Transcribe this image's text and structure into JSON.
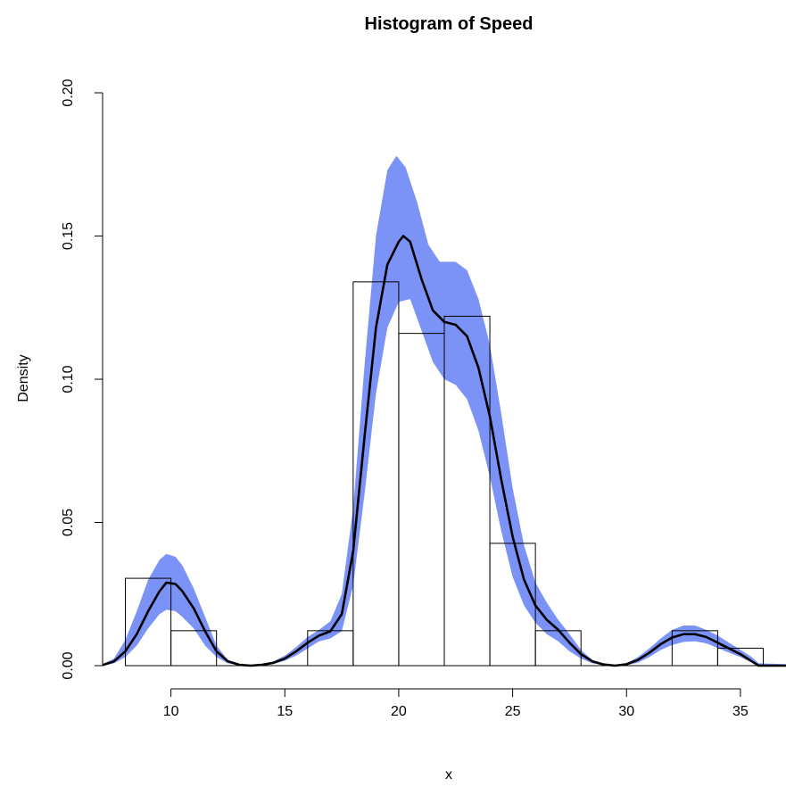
{
  "chart_data": {
    "type": "bar",
    "title": "Histogram of Speed",
    "xlabel": "x",
    "ylabel": "Density",
    "xlim": [
      7.0,
      37.0
    ],
    "ylim": [
      0.0,
      0.2
    ],
    "x_ticks": [
      10,
      15,
      20,
      25,
      30,
      35
    ],
    "x_tick_labels": [
      "10",
      "15",
      "20",
      "25",
      "30",
      "35"
    ],
    "y_ticks": [
      0.0,
      0.05,
      0.1,
      0.15,
      0.2
    ],
    "y_tick_labels": [
      "0.00",
      "0.05",
      "0.10",
      "0.15",
      "0.20"
    ],
    "grid": false,
    "bins": [
      {
        "x0": 8,
        "x1": 10,
        "density": 0.0305
      },
      {
        "x0": 10,
        "x1": 12,
        "density": 0.0122
      },
      {
        "x0": 12,
        "x1": 14,
        "density": 0.0
      },
      {
        "x0": 14,
        "x1": 16,
        "density": 0.0
      },
      {
        "x0": 16,
        "x1": 18,
        "density": 0.0122
      },
      {
        "x0": 18,
        "x1": 20,
        "density": 0.134
      },
      {
        "x0": 20,
        "x1": 22,
        "density": 0.116
      },
      {
        "x0": 22,
        "x1": 24,
        "density": 0.122
      },
      {
        "x0": 24,
        "x1": 26,
        "density": 0.0427
      },
      {
        "x0": 26,
        "x1": 28,
        "density": 0.0122
      },
      {
        "x0": 28,
        "x1": 30,
        "density": 0.0
      },
      {
        "x0": 30,
        "x1": 32,
        "density": 0.0
      },
      {
        "x0": 32,
        "x1": 34,
        "density": 0.0122
      },
      {
        "x0": 34,
        "x1": 36,
        "density": 0.0061
      }
    ],
    "density_curve": {
      "color": "#000000",
      "points": [
        [
          7,
          0.0002
        ],
        [
          7.5,
          0.0015
        ],
        [
          8,
          0.005
        ],
        [
          8.5,
          0.011
        ],
        [
          9,
          0.019
        ],
        [
          9.5,
          0.026
        ],
        [
          9.8,
          0.029
        ],
        [
          10.2,
          0.0285
        ],
        [
          10.5,
          0.026
        ],
        [
          11,
          0.02
        ],
        [
          11.5,
          0.012
        ],
        [
          12,
          0.005
        ],
        [
          12.5,
          0.0015
        ],
        [
          13,
          0.0003
        ],
        [
          13.5,
          0.0
        ],
        [
          14,
          0.0003
        ],
        [
          14.5,
          0.001
        ],
        [
          15,
          0.0025
        ],
        [
          15.5,
          0.005
        ],
        [
          16,
          0.008
        ],
        [
          16.5,
          0.0105
        ],
        [
          17,
          0.012
        ],
        [
          17.5,
          0.018
        ],
        [
          18,
          0.04
        ],
        [
          18.5,
          0.08
        ],
        [
          19,
          0.118
        ],
        [
          19.5,
          0.14
        ],
        [
          20,
          0.148
        ],
        [
          20.2,
          0.15
        ],
        [
          20.5,
          0.148
        ],
        [
          21,
          0.135
        ],
        [
          21.5,
          0.124
        ],
        [
          22,
          0.12
        ],
        [
          22.5,
          0.119
        ],
        [
          23,
          0.115
        ],
        [
          23.5,
          0.104
        ],
        [
          24,
          0.087
        ],
        [
          24.5,
          0.065
        ],
        [
          25,
          0.045
        ],
        [
          25.5,
          0.03
        ],
        [
          26,
          0.021
        ],
        [
          26.5,
          0.016
        ],
        [
          27,
          0.0125
        ],
        [
          27.5,
          0.008
        ],
        [
          28,
          0.004
        ],
        [
          28.5,
          0.0015
        ],
        [
          29,
          0.0004
        ],
        [
          29.5,
          0.0
        ],
        [
          30,
          0.0005
        ],
        [
          30.5,
          0.002
        ],
        [
          31,
          0.0045
        ],
        [
          31.5,
          0.0075
        ],
        [
          32,
          0.0098
        ],
        [
          32.5,
          0.011
        ],
        [
          33,
          0.011
        ],
        [
          33.5,
          0.01
        ],
        [
          34,
          0.008
        ],
        [
          34.5,
          0.006
        ],
        [
          35,
          0.004
        ],
        [
          35.5,
          0.0015
        ],
        [
          35.8,
          0.0
        ],
        [
          37,
          0.0
        ]
      ]
    },
    "confidence_band": {
      "color": "#7b93f7",
      "upper": [
        [
          7,
          0.0005
        ],
        [
          7.5,
          0.0025
        ],
        [
          8,
          0.009
        ],
        [
          8.5,
          0.019
        ],
        [
          9,
          0.03
        ],
        [
          9.5,
          0.037
        ],
        [
          9.8,
          0.039
        ],
        [
          10.2,
          0.038
        ],
        [
          10.5,
          0.035
        ],
        [
          11,
          0.027
        ],
        [
          11.5,
          0.017
        ],
        [
          12,
          0.007
        ],
        [
          12.5,
          0.002
        ],
        [
          13,
          0.0004
        ],
        [
          13.5,
          0.0
        ],
        [
          14,
          0.0004
        ],
        [
          14.5,
          0.0015
        ],
        [
          15,
          0.0035
        ],
        [
          15.5,
          0.0065
        ],
        [
          16,
          0.01
        ],
        [
          16.5,
          0.0125
        ],
        [
          17,
          0.0155
        ],
        [
          17.5,
          0.025
        ],
        [
          18,
          0.055
        ],
        [
          18.5,
          0.105
        ],
        [
          19,
          0.15
        ],
        [
          19.5,
          0.173
        ],
        [
          19.9,
          0.178
        ],
        [
          20.3,
          0.174
        ],
        [
          20.8,
          0.162
        ],
        [
          21.3,
          0.147
        ],
        [
          21.8,
          0.141
        ],
        [
          22.5,
          0.141
        ],
        [
          23,
          0.138
        ],
        [
          23.5,
          0.128
        ],
        [
          24,
          0.112
        ],
        [
          24.5,
          0.088
        ],
        [
          25,
          0.062
        ],
        [
          25.5,
          0.042
        ],
        [
          26,
          0.029
        ],
        [
          26.5,
          0.022
        ],
        [
          27,
          0.016
        ],
        [
          27.5,
          0.011
        ],
        [
          28,
          0.0055
        ],
        [
          28.5,
          0.002
        ],
        [
          29,
          0.0005
        ],
        [
          29.5,
          0.0
        ],
        [
          30,
          0.0008
        ],
        [
          30.5,
          0.003
        ],
        [
          31,
          0.006
        ],
        [
          31.5,
          0.0095
        ],
        [
          32,
          0.0125
        ],
        [
          32.5,
          0.014
        ],
        [
          33,
          0.014
        ],
        [
          33.5,
          0.0125
        ],
        [
          34,
          0.0105
        ],
        [
          34.5,
          0.008
        ],
        [
          35,
          0.0055
        ],
        [
          35.5,
          0.003
        ],
        [
          35.8,
          0.0008
        ],
        [
          37,
          0.0005
        ]
      ],
      "lower": [
        [
          7,
          0.0
        ],
        [
          7.5,
          0.0008
        ],
        [
          8,
          0.003
        ],
        [
          8.5,
          0.007
        ],
        [
          9,
          0.013
        ],
        [
          9.5,
          0.018
        ],
        [
          9.8,
          0.0195
        ],
        [
          10.2,
          0.019
        ],
        [
          10.5,
          0.017
        ],
        [
          11,
          0.013
        ],
        [
          11.5,
          0.007
        ],
        [
          12,
          0.003
        ],
        [
          12.5,
          0.0008
        ],
        [
          13,
          0.0001
        ],
        [
          13.5,
          0.0
        ],
        [
          14,
          0.0001
        ],
        [
          14.5,
          0.0006
        ],
        [
          15,
          0.0017
        ],
        [
          15.5,
          0.0035
        ],
        [
          16,
          0.006
        ],
        [
          16.5,
          0.0085
        ],
        [
          17,
          0.0095
        ],
        [
          17.5,
          0.012
        ],
        [
          18,
          0.028
        ],
        [
          18.5,
          0.06
        ],
        [
          19,
          0.095
        ],
        [
          19.5,
          0.118
        ],
        [
          20,
          0.127
        ],
        [
          20.5,
          0.128
        ],
        [
          21,
          0.117
        ],
        [
          21.5,
          0.106
        ],
        [
          22,
          0.1
        ],
        [
          22.5,
          0.098
        ],
        [
          23,
          0.093
        ],
        [
          23.5,
          0.082
        ],
        [
          24,
          0.066
        ],
        [
          24.5,
          0.047
        ],
        [
          25,
          0.031
        ],
        [
          25.5,
          0.021
        ],
        [
          26,
          0.015
        ],
        [
          26.5,
          0.011
        ],
        [
          27,
          0.0085
        ],
        [
          27.5,
          0.005
        ],
        [
          28,
          0.0025
        ],
        [
          28.5,
          0.0008
        ],
        [
          29,
          0.0001
        ],
        [
          29.5,
          0.0
        ],
        [
          30,
          0.0002
        ],
        [
          30.5,
          0.001
        ],
        [
          31,
          0.003
        ],
        [
          31.5,
          0.0055
        ],
        [
          32,
          0.0072
        ],
        [
          32.5,
          0.0083
        ],
        [
          33,
          0.0085
        ],
        [
          33.5,
          0.0078
        ],
        [
          34,
          0.0062
        ],
        [
          34.5,
          0.0045
        ],
        [
          35,
          0.003
        ],
        [
          35.5,
          0.001
        ],
        [
          35.8,
          0.0
        ],
        [
          37,
          0.0
        ]
      ]
    }
  }
}
